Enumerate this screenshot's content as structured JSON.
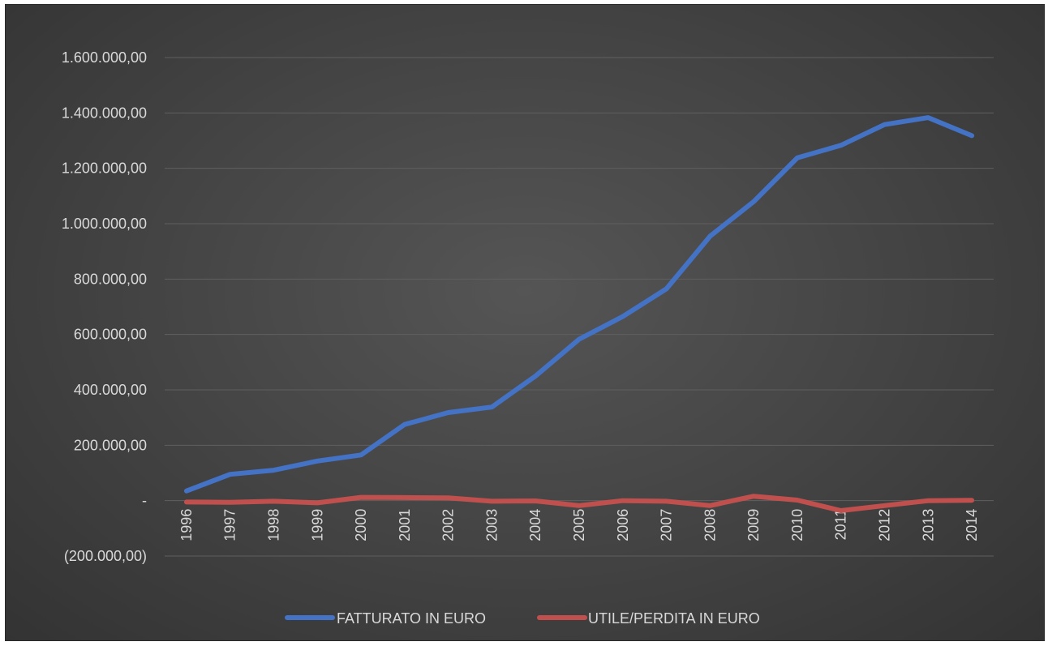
{
  "chart_data": {
    "type": "line",
    "title": "",
    "xlabel": "",
    "ylabel": "",
    "ylim": [
      -200000,
      1600000
    ],
    "grid": true,
    "legend_position": "bottom",
    "y_ticks": [
      {
        "value": 1600000,
        "label": "1.600.000,00"
      },
      {
        "value": 1400000,
        "label": "1.400.000,00"
      },
      {
        "value": 1200000,
        "label": "1.200.000,00"
      },
      {
        "value": 1000000,
        "label": "1.000.000,00"
      },
      {
        "value": 800000,
        "label": "800.000,00"
      },
      {
        "value": 600000,
        "label": "600.000,00"
      },
      {
        "value": 400000,
        "label": "400.000,00"
      },
      {
        "value": 200000,
        "label": "200.000,00"
      },
      {
        "value": 0,
        "label": "-"
      },
      {
        "value": -200000,
        "label": "(200.000,00)"
      }
    ],
    "categories": [
      "1996",
      "1997",
      "1998",
      "1999",
      "2000",
      "2001",
      "2002",
      "2003",
      "2004",
      "2005",
      "2006",
      "2007",
      "2008",
      "2009",
      "2010",
      "2011",
      "2012",
      "2013",
      "2014"
    ],
    "series": [
      {
        "name": "FATTURATO IN EURO",
        "color": "#4472c4",
        "values": [
          35000,
          95000,
          110000,
          143000,
          165000,
          275000,
          318000,
          338000,
          450000,
          583000,
          665000,
          765000,
          955000,
          1080000,
          1238000,
          1283000,
          1358000,
          1383000,
          1318000
        ]
      },
      {
        "name": "UTILE/PERDITA IN EURO",
        "color": "#c0504d",
        "values": [
          -5000,
          -6000,
          -2000,
          -8000,
          12000,
          11000,
          10000,
          -2000,
          -1000,
          -18000,
          0,
          -2000,
          -18000,
          16000,
          2000,
          -36000,
          -18000,
          0,
          1000
        ]
      }
    ]
  }
}
